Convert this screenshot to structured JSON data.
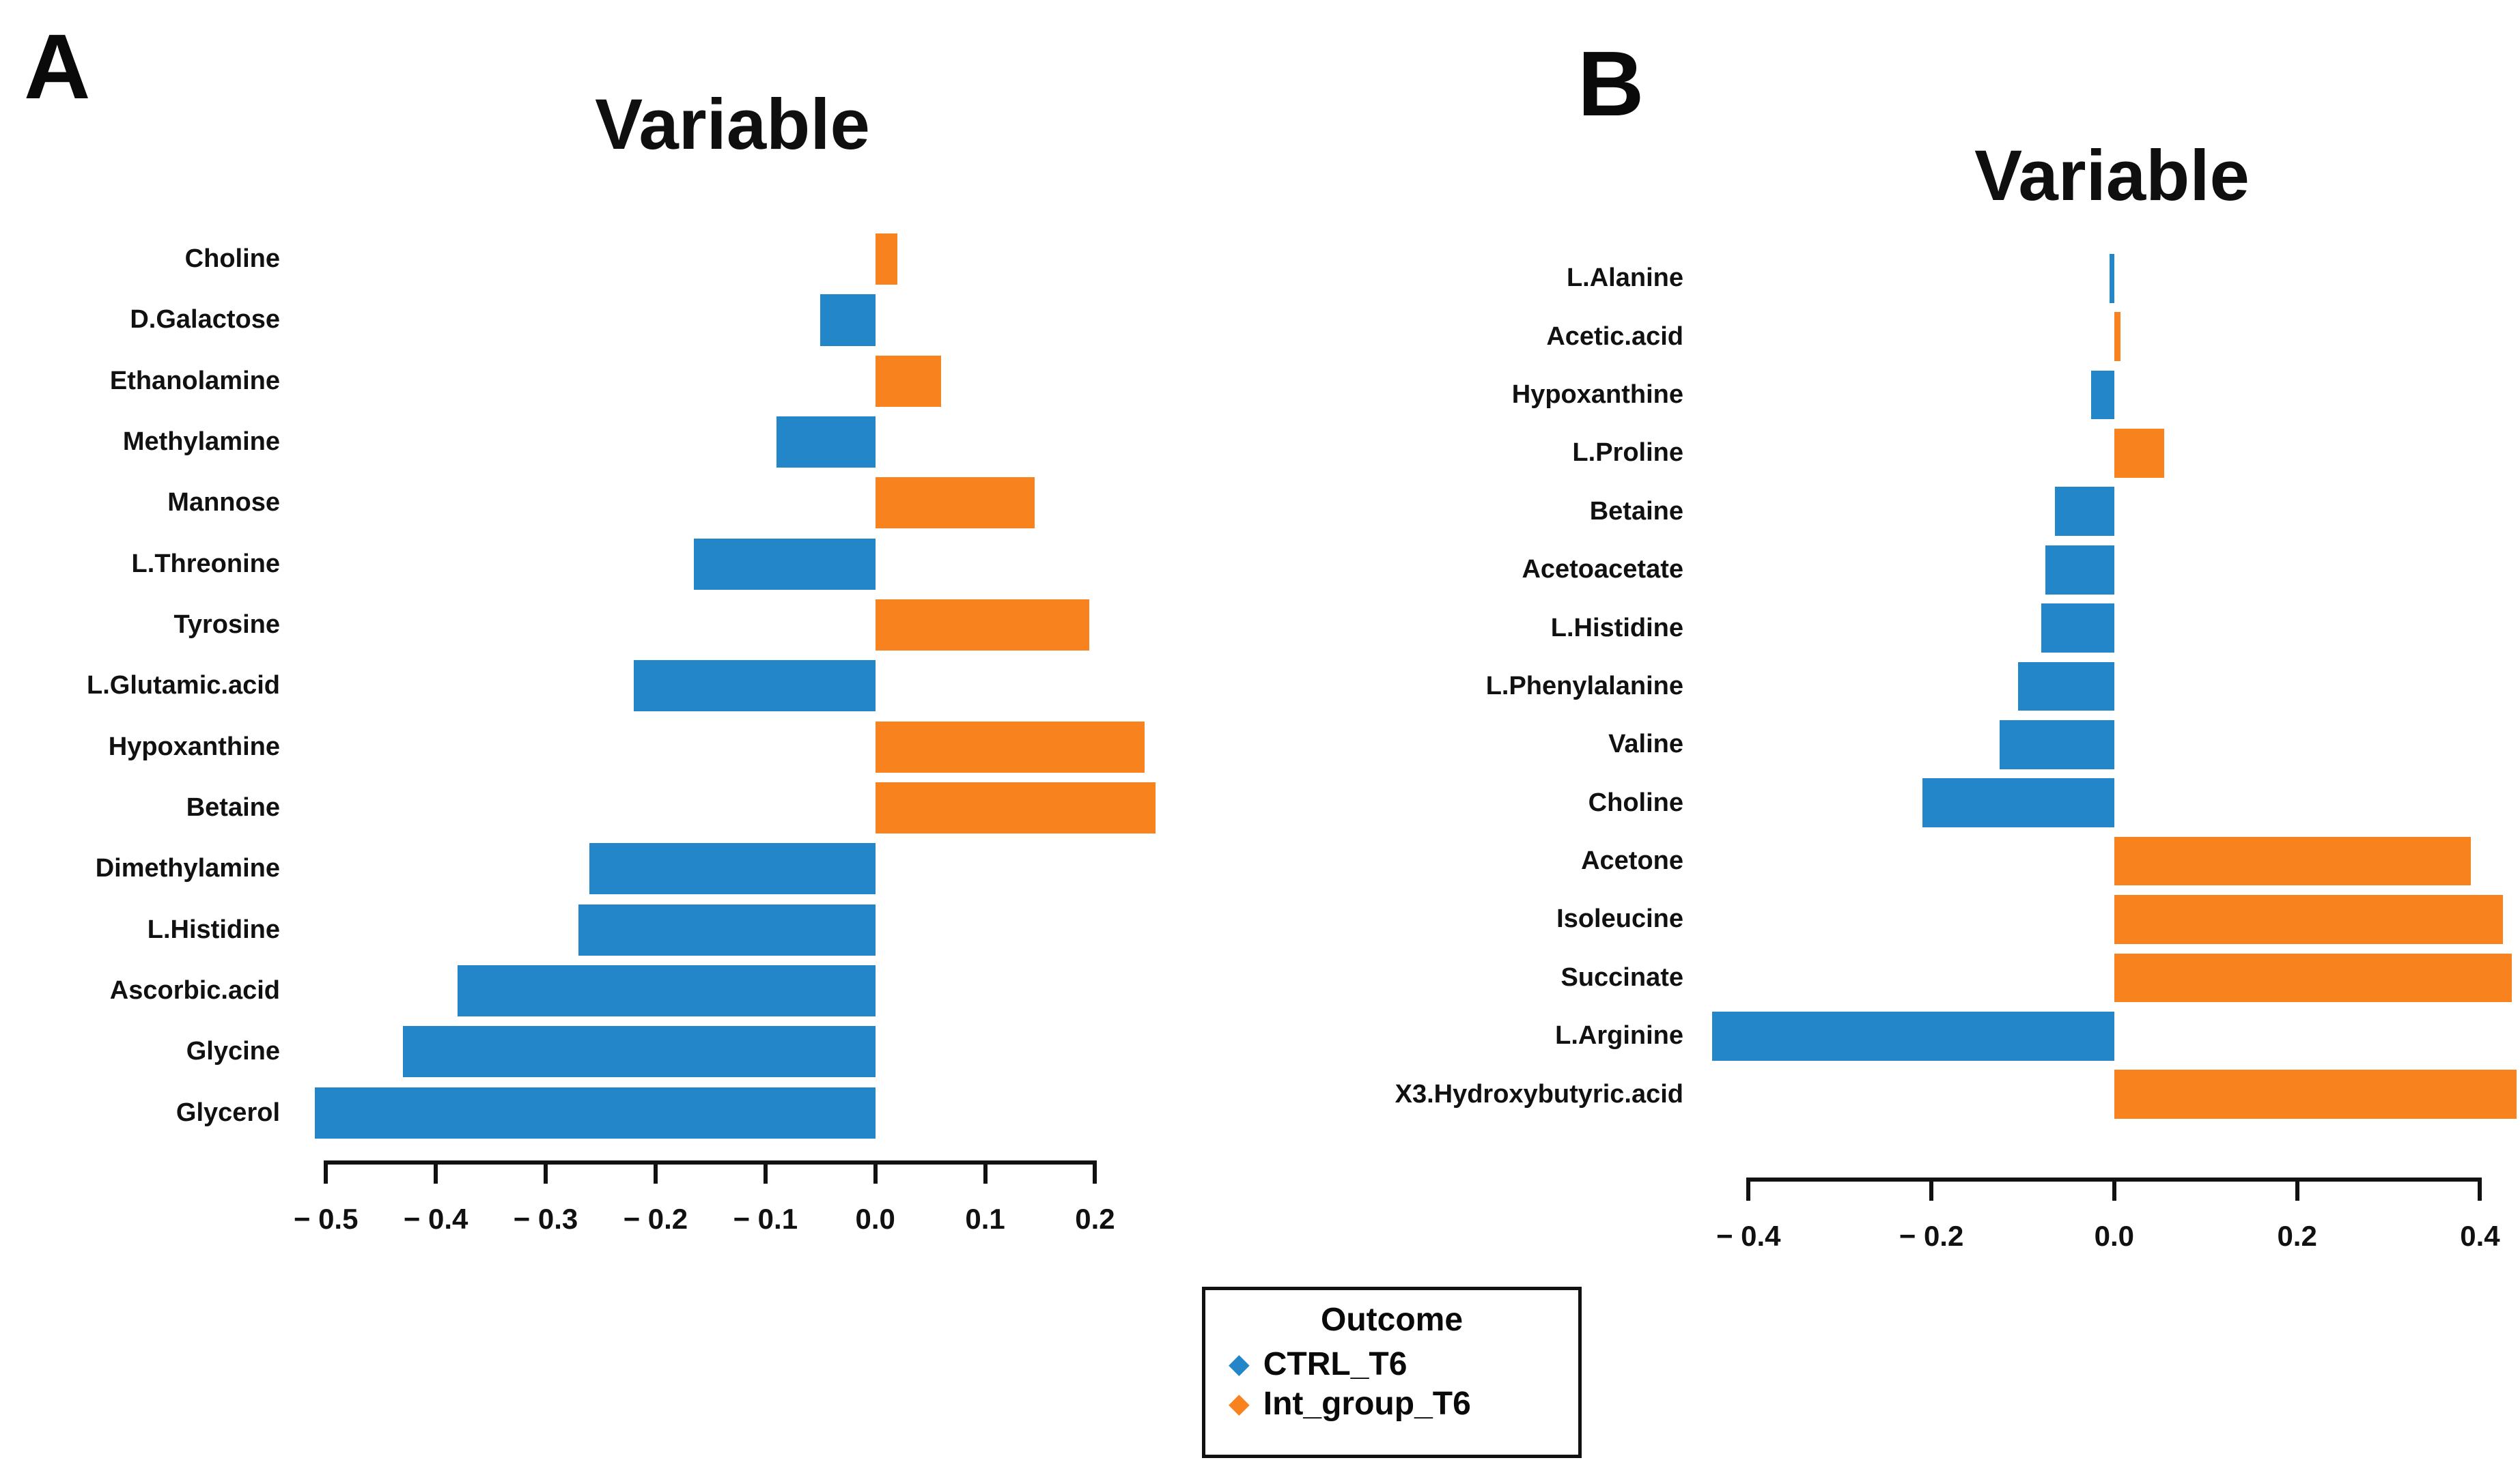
{
  "figure": {
    "panel_letters": [
      "A",
      "B"
    ]
  },
  "colors": {
    "CTRL_T6": "#2386C8",
    "Int_group_T6": "#F8831E"
  },
  "legend": {
    "title": "Outcome",
    "marker_glyph": "◆",
    "entries": [
      {
        "label": "CTRL_T6"
      },
      {
        "label": "Int_group_T6"
      }
    ]
  },
  "chart_data": [
    {
      "id": "A",
      "type": "bar",
      "orientation": "horizontal",
      "title": "Variable",
      "legend_position": "bottom-center-shared",
      "grid": false,
      "categories": [
        "Choline",
        "D.Galactose",
        "Ethanolamine",
        "Methylamine",
        "Mannose",
        "L.Threonine",
        "Tyrosine",
        "L.Glutamic.acid",
        "Hypoxanthine",
        "Betaine",
        "Dimethylamine",
        "L.Histidine",
        "Ascorbic.acid",
        "Glycine",
        "Glycerol"
      ],
      "values": [
        0.02,
        -0.05,
        0.06,
        -0.09,
        0.145,
        -0.165,
        0.195,
        -0.22,
        0.245,
        0.255,
        -0.26,
        -0.27,
        -0.38,
        -0.43,
        -0.51
      ],
      "groups": [
        "Int_group_T6",
        "CTRL_T6",
        "Int_group_T6",
        "CTRL_T6",
        "Int_group_T6",
        "CTRL_T6",
        "Int_group_T6",
        "CTRL_T6",
        "Int_group_T6",
        "Int_group_T6",
        "CTRL_T6",
        "CTRL_T6",
        "CTRL_T6",
        "CTRL_T6",
        "CTRL_T6"
      ],
      "xlim": [
        -0.52,
        0.26
      ],
      "xticks": [
        -0.5,
        -0.4,
        -0.3,
        -0.2,
        -0.1,
        0.0,
        0.1,
        0.2
      ],
      "xtick_labels": [
        "− 0.5",
        "− 0.4",
        "− 0.3",
        "− 0.2",
        "− 0.1",
        "0.0",
        "0.1",
        "0.2"
      ]
    },
    {
      "id": "B",
      "type": "bar",
      "orientation": "horizontal",
      "title": "Variable",
      "legend_position": "bottom-center-shared",
      "grid": false,
      "categories": [
        "L.Alanine",
        "Acetic.acid",
        "Hypoxanthine",
        "L.Proline",
        "Betaine",
        "Acetoacetate",
        "L.Histidine",
        "L.Phenylalanine",
        "Valine",
        "Choline",
        "Acetone",
        "Isoleucine",
        "Succinate",
        "L.Arginine",
        "X3.Hydroxybutyric.acid"
      ],
      "values": [
        -0.005,
        0.007,
        -0.025,
        0.055,
        -0.065,
        -0.075,
        -0.08,
        -0.105,
        -0.125,
        -0.21,
        0.39,
        0.425,
        0.435,
        -0.44,
        0.44
      ],
      "groups": [
        "CTRL_T6",
        "Int_group_T6",
        "CTRL_T6",
        "Int_group_T6",
        "CTRL_T6",
        "CTRL_T6",
        "CTRL_T6",
        "CTRL_T6",
        "CTRL_T6",
        "CTRL_T6",
        "Int_group_T6",
        "Int_group_T6",
        "Int_group_T6",
        "CTRL_T6",
        "Int_group_T6"
      ],
      "xlim": [
        -0.445,
        0.44
      ],
      "xticks": [
        -0.4,
        -0.2,
        0.0,
        0.2,
        0.4
      ],
      "xtick_labels": [
        "− 0.4",
        "− 0.2",
        "0.0",
        "0.2",
        "0.4"
      ]
    }
  ]
}
